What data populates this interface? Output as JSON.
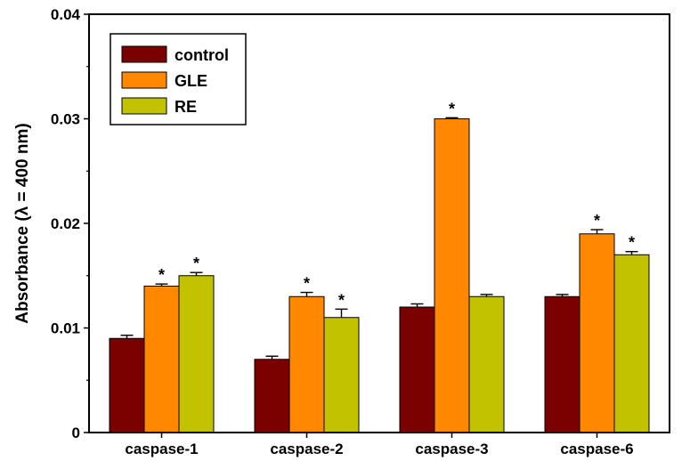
{
  "chart_data": {
    "type": "bar",
    "title": "",
    "xlabel": "",
    "ylabel": "Absorbance (λ = 400 nm)",
    "ylim": [
      0,
      0.04
    ],
    "yticks": [
      0,
      0.01,
      0.02,
      0.03,
      0.04
    ],
    "ytick_labels": [
      "0",
      "0.01",
      "0.02",
      "0.03",
      "0.04"
    ],
    "categories": [
      "caspase-1",
      "caspase-2",
      "caspase-3",
      "caspase-6"
    ],
    "series": [
      {
        "name": "control",
        "color": "#7b0000",
        "values": [
          0.009,
          0.007,
          0.012,
          0.013
        ],
        "errors": [
          0.0003,
          0.0003,
          0.0003,
          0.0002
        ],
        "significance": [
          "",
          "",
          "",
          ""
        ]
      },
      {
        "name": "GLE",
        "color": "#ff8800",
        "values": [
          0.014,
          0.013,
          0.03,
          0.019
        ],
        "errors": [
          0.0002,
          0.0004,
          0.0001,
          0.0004
        ],
        "significance": [
          "*",
          "*",
          "*",
          "*"
        ]
      },
      {
        "name": "RE",
        "color": "#c2c200",
        "values": [
          0.015,
          0.011,
          0.013,
          0.017
        ],
        "errors": [
          0.0003,
          0.0008,
          0.0002,
          0.0003
        ],
        "significance": [
          "*",
          "*",
          "",
          "*"
        ]
      }
    ],
    "legend_position": "top-left",
    "grid": false
  }
}
